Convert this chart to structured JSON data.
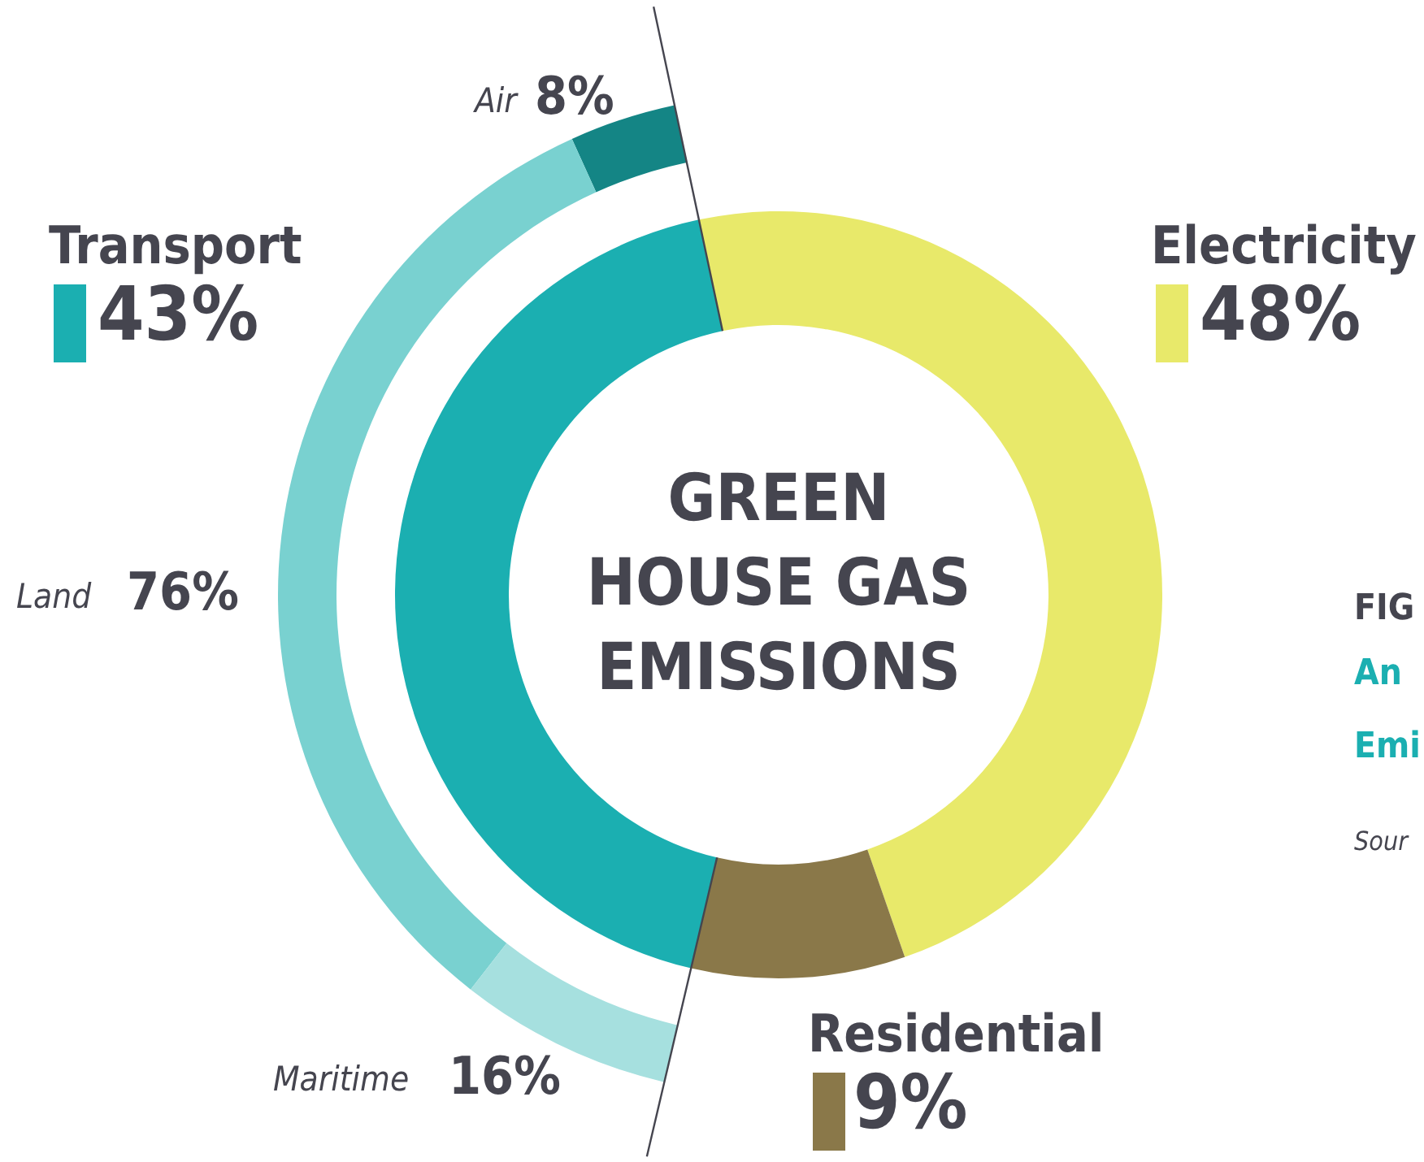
{
  "chart_data": [
    {
      "type": "donut",
      "title": "GREEN\nHOUSE GAS\nEMISSIONS",
      "categories": [
        "Electricity",
        "Residential",
        "Transport"
      ],
      "values": [
        48,
        9,
        43
      ],
      "colors": [
        "#e8e96a",
        "#8a7849",
        "#1bafb1"
      ],
      "value_labels": [
        "48%",
        "9%",
        "43%"
      ],
      "annotations": [
        "FIG",
        "An",
        "Emi",
        "Sour"
      ]
    },
    {
      "type": "donut",
      "categories": [
        "Air",
        "Land",
        "Maritime"
      ],
      "values": [
        8,
        76,
        16
      ],
      "colors": [
        "#148585",
        "#79d1d0",
        "#a6e0df"
      ],
      "value_labels": [
        "8%",
        "76%",
        "16%"
      ]
    }
  ]
}
